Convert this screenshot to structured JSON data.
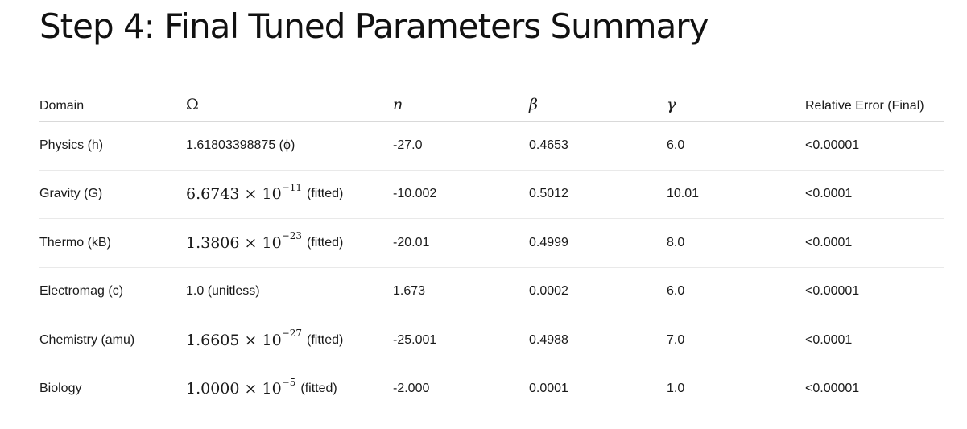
{
  "title": "Step 4: Final Tuned Parameters Summary",
  "table": {
    "headers": {
      "domain": "Domain",
      "omega": "Ω",
      "n": "n",
      "beta": "β",
      "gamma": "γ",
      "error": "Relative Error (Final)"
    },
    "rows": [
      {
        "domain": "Physics (h)",
        "omega_text": "1.61803398875 (ϕ)",
        "n": "-27.0",
        "beta": "0.4653",
        "gamma": "6.0",
        "error": "<0.00001"
      },
      {
        "domain": "Gravity (G)",
        "omega_mantissa": "6.6743 × 10",
        "omega_exp": "−11",
        "omega_suffix": "(fitted)",
        "n": "-10.002",
        "beta": "0.5012",
        "gamma": "10.01",
        "error": "<0.0001"
      },
      {
        "domain": "Thermo (kB)",
        "omega_mantissa": "1.3806 × 10",
        "omega_exp": "−23",
        "omega_suffix": "(fitted)",
        "n": "-20.01",
        "beta": "0.4999",
        "gamma": "8.0",
        "error": "<0.0001"
      },
      {
        "domain": "Electromag (c)",
        "omega_text": "1.0 (unitless)",
        "n": "1.673",
        "beta": "0.0002",
        "gamma": "6.0",
        "error": "<0.00001"
      },
      {
        "domain": "Chemistry (amu)",
        "omega_mantissa": "1.6605 × 10",
        "omega_exp": "−27",
        "omega_suffix": "(fitted)",
        "n": "-25.001",
        "beta": "0.4988",
        "gamma": "7.0",
        "error": "<0.0001"
      },
      {
        "domain": "Biology",
        "omega_mantissa": "1.0000 × 10",
        "omega_exp": "−5",
        "omega_suffix": "(fitted)",
        "n": "-2.000",
        "beta": "0.0001",
        "gamma": "1.0",
        "error": "<0.00001"
      }
    ]
  }
}
